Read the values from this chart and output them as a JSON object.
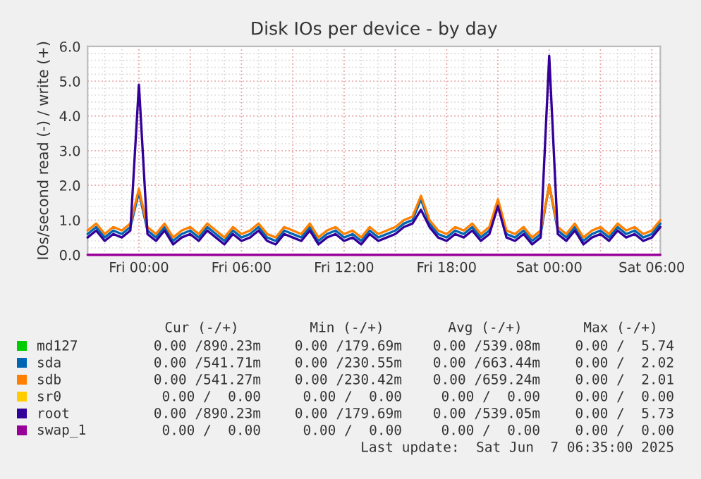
{
  "chart_data": {
    "type": "line",
    "title": "Disk IOs per device - by day",
    "ylabel": "IOs/second read (-) / write (+)",
    "x": [
      "2025-06-05T21:00",
      "2025-06-05T21:30",
      "2025-06-05T22:00",
      "2025-06-05T22:30",
      "2025-06-05T23:00",
      "2025-06-05T23:30",
      "2025-06-06T00:00",
      "2025-06-06T00:30",
      "2025-06-06T01:00",
      "2025-06-06T01:30",
      "2025-06-06T02:00",
      "2025-06-06T02:30",
      "2025-06-06T03:00",
      "2025-06-06T03:30",
      "2025-06-06T04:00",
      "2025-06-06T04:30",
      "2025-06-06T05:00",
      "2025-06-06T05:30",
      "2025-06-06T06:00",
      "2025-06-06T06:30",
      "2025-06-06T07:00",
      "2025-06-06T07:30",
      "2025-06-06T08:00",
      "2025-06-06T08:30",
      "2025-06-06T09:00",
      "2025-06-06T09:30",
      "2025-06-06T10:00",
      "2025-06-06T10:30",
      "2025-06-06T11:00",
      "2025-06-06T11:30",
      "2025-06-06T12:00",
      "2025-06-06T12:30",
      "2025-06-06T13:00",
      "2025-06-06T13:30",
      "2025-06-06T14:00",
      "2025-06-06T14:30",
      "2025-06-06T15:00",
      "2025-06-06T15:30",
      "2025-06-06T16:00",
      "2025-06-06T16:30",
      "2025-06-06T17:00",
      "2025-06-06T17:30",
      "2025-06-06T18:00",
      "2025-06-06T18:30",
      "2025-06-06T19:00",
      "2025-06-06T19:30",
      "2025-06-06T20:00",
      "2025-06-06T20:30",
      "2025-06-06T21:00",
      "2025-06-06T21:30",
      "2025-06-06T22:00",
      "2025-06-06T22:30",
      "2025-06-06T23:00",
      "2025-06-06T23:30",
      "2025-06-07T00:00",
      "2025-06-07T00:30",
      "2025-06-07T01:00",
      "2025-06-07T01:30",
      "2025-06-07T02:00",
      "2025-06-07T02:30",
      "2025-06-07T03:00",
      "2025-06-07T03:30",
      "2025-06-07T04:00",
      "2025-06-07T04:30",
      "2025-06-07T05:00",
      "2025-06-07T05:30",
      "2025-06-07T06:00",
      "2025-06-07T06:30"
    ],
    "xlim": [
      "2025-06-05T21:00",
      "2025-06-07T06:30"
    ],
    "xticks": [
      {
        "value": "2025-06-06T00:00",
        "label": "Fri 00:00"
      },
      {
        "value": "2025-06-06T03:00",
        "label": null
      },
      {
        "value": "2025-06-06T06:00",
        "label": "Fri 06:00"
      },
      {
        "value": "2025-06-06T09:00",
        "label": null
      },
      {
        "value": "2025-06-06T12:00",
        "label": "Fri 12:00"
      },
      {
        "value": "2025-06-06T15:00",
        "label": null
      },
      {
        "value": "2025-06-06T18:00",
        "label": "Fri 18:00"
      },
      {
        "value": "2025-06-06T21:00",
        "label": null
      },
      {
        "value": "2025-06-07T00:00",
        "label": "Sat 00:00"
      },
      {
        "value": "2025-06-07T03:00",
        "label": null
      },
      {
        "value": "2025-06-07T06:00",
        "label": "Sat 06:00"
      }
    ],
    "ylim": [
      0,
      6
    ],
    "yticks": [
      {
        "value": 0,
        "label": "0.0"
      },
      {
        "value": 1,
        "label": "1.0"
      },
      {
        "value": 2,
        "label": "2.0"
      },
      {
        "value": 3,
        "label": "3.0"
      },
      {
        "value": 4,
        "label": "4.0"
      },
      {
        "value": 5,
        "label": "5.0"
      },
      {
        "value": 6,
        "label": "6.0"
      }
    ],
    "grid": true,
    "legend": "bottom",
    "line_style": "solid",
    "marker": "none",
    "series": [
      {
        "name": "md127",
        "color": "#00cc00",
        "values": [
          null,
          null,
          null,
          null,
          null,
          null,
          null,
          null,
          null,
          null,
          null,
          null,
          null,
          null,
          null,
          null,
          null,
          null,
          null,
          null,
          null,
          null,
          null,
          null,
          null,
          null,
          null,
          null,
          null,
          null,
          null,
          null,
          null,
          null,
          null,
          null,
          null,
          null,
          null,
          null,
          null,
          null,
          null,
          null,
          null,
          null,
          null,
          null,
          null,
          null,
          null,
          null,
          null,
          null,
          null,
          null,
          null,
          null,
          null,
          null,
          null,
          null,
          null,
          null,
          null,
          null,
          null,
          null
        ]
      },
      {
        "name": "sda",
        "color": "#0066b3",
        "values": [
          0.6,
          0.8,
          0.5,
          0.7,
          0.6,
          0.8,
          1.8,
          0.7,
          0.5,
          0.8,
          0.4,
          0.6,
          0.7,
          0.5,
          0.8,
          0.6,
          0.4,
          0.7,
          0.5,
          0.6,
          0.8,
          0.5,
          0.4,
          0.7,
          0.6,
          0.5,
          0.8,
          0.4,
          0.6,
          0.7,
          0.5,
          0.6,
          0.4,
          0.7,
          0.5,
          0.6,
          0.7,
          0.9,
          1.0,
          1.6,
          0.9,
          0.6,
          0.5,
          0.7,
          0.6,
          0.8,
          0.5,
          0.7,
          1.5,
          0.6,
          0.5,
          0.7,
          0.4,
          0.6,
          2.02,
          0.7,
          0.5,
          0.8,
          0.4,
          0.6,
          0.7,
          0.5,
          0.8,
          0.6,
          0.7,
          0.5,
          0.6,
          0.9
        ]
      },
      {
        "name": "sdb",
        "color": "#ff8000",
        "values": [
          0.7,
          0.9,
          0.6,
          0.8,
          0.7,
          0.9,
          1.9,
          0.8,
          0.6,
          0.9,
          0.5,
          0.7,
          0.8,
          0.6,
          0.9,
          0.7,
          0.5,
          0.8,
          0.6,
          0.7,
          0.9,
          0.6,
          0.5,
          0.8,
          0.7,
          0.6,
          0.9,
          0.5,
          0.7,
          0.8,
          0.6,
          0.7,
          0.5,
          0.8,
          0.6,
          0.7,
          0.8,
          1.0,
          1.1,
          1.7,
          1.0,
          0.7,
          0.6,
          0.8,
          0.7,
          0.9,
          0.6,
          0.8,
          1.6,
          0.7,
          0.6,
          0.8,
          0.5,
          0.7,
          2.01,
          0.8,
          0.6,
          0.9,
          0.5,
          0.7,
          0.8,
          0.6,
          0.9,
          0.7,
          0.8,
          0.6,
          0.7,
          1.0
        ]
      },
      {
        "name": "sr0",
        "color": "#ffcc00",
        "values": [
          null,
          null,
          null,
          null,
          null,
          null,
          null,
          null,
          null,
          null,
          null,
          null,
          null,
          null,
          null,
          null,
          null,
          null,
          null,
          null,
          null,
          null,
          null,
          null,
          null,
          null,
          null,
          null,
          null,
          null,
          null,
          null,
          null,
          null,
          null,
          null,
          null,
          null,
          null,
          null,
          null,
          null,
          null,
          null,
          null,
          null,
          null,
          null,
          null,
          null,
          null,
          null,
          null,
          null,
          null,
          null,
          null,
          null,
          null,
          null,
          null,
          null,
          null,
          null,
          null,
          null,
          null,
          null
        ]
      },
      {
        "name": "root",
        "color": "#330099",
        "values": [
          0.5,
          0.7,
          0.4,
          0.6,
          0.5,
          0.7,
          4.9,
          0.6,
          0.4,
          0.7,
          0.3,
          0.5,
          0.6,
          0.4,
          0.7,
          0.5,
          0.3,
          0.6,
          0.4,
          0.5,
          0.7,
          0.4,
          0.3,
          0.6,
          0.5,
          0.4,
          0.7,
          0.3,
          0.5,
          0.6,
          0.4,
          0.5,
          0.3,
          0.6,
          0.4,
          0.5,
          0.6,
          0.8,
          0.9,
          1.3,
          0.8,
          0.5,
          0.4,
          0.6,
          0.5,
          0.7,
          0.4,
          0.6,
          1.4,
          0.5,
          0.4,
          0.6,
          0.3,
          0.5,
          5.73,
          0.6,
          0.4,
          0.7,
          0.3,
          0.5,
          0.6,
          0.4,
          0.7,
          0.5,
          0.6,
          0.4,
          0.5,
          0.8
        ]
      },
      {
        "name": "swap_1",
        "color": "#990099",
        "values": [
          0,
          0,
          0,
          0,
          0,
          0,
          0,
          0,
          0,
          0,
          0,
          0,
          0,
          0,
          0,
          0,
          0,
          0,
          0,
          0,
          0,
          0,
          0,
          0,
          0,
          0,
          0,
          0,
          0,
          0,
          0,
          0,
          0,
          0,
          0,
          0,
          0,
          0,
          0,
          0,
          0,
          0,
          0,
          0,
          0,
          0,
          0,
          0,
          0,
          0,
          0,
          0,
          0,
          0,
          0,
          0,
          0,
          0,
          0,
          0,
          0,
          0,
          0,
          0,
          0,
          0,
          0,
          0
        ]
      }
    ],
    "annotations": [
      "Cur (-/+)",
      "Min (-/+)",
      "Avg (-/+)",
      "Max (-/+)",
      "0.00 /890.23m",
      "0.00 /179.69m",
      "0.00 /539.08m",
      "0.00 /  5.74",
      "0.00 /541.71m",
      "0.00 /230.55m",
      "0.00 /663.44m",
      "0.00 /  2.02",
      "0.00 /541.27m",
      "0.00 /230.42m",
      "0.00 /659.24m",
      "0.00 /  2.01",
      "0.00 /  0.00",
      "0.00 /  0.00",
      "0.00 /  0.00",
      "0.00 /  0.00",
      "0.00 /890.23m",
      "0.00 /179.69m",
      "0.00 /539.05m",
      "0.00 /  5.73",
      "0.00 /  0.00",
      "0.00 /  0.00",
      "0.00 /  0.00",
      "0.00 /  0.00",
      "Last update:  Sat Jun  7 06:35:00 2025"
    ]
  }
}
